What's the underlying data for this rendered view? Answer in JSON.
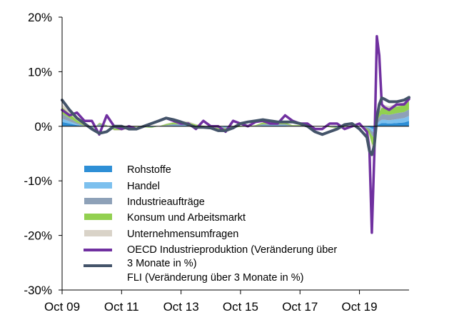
{
  "chart_data": {
    "type": "area",
    "title": "",
    "xlabel": "",
    "ylabel": "",
    "ylim": [
      -30,
      20
    ],
    "yticks": [
      {
        "value": 20,
        "label": "20%"
      },
      {
        "value": 10,
        "label": "10%"
      },
      {
        "value": 0,
        "label": "0%"
      },
      {
        "value": -10,
        "label": "-10%"
      },
      {
        "value": -20,
        "label": "-20%"
      },
      {
        "value": -30,
        "label": "-30%"
      }
    ],
    "xlim": [
      "2009-10",
      "2021-06"
    ],
    "xticks": [
      {
        "value": "2009-10",
        "label": "Oct 09"
      },
      {
        "value": "2011-10",
        "label": "Oct 11"
      },
      {
        "value": "2013-10",
        "label": "Oct 13"
      },
      {
        "value": "2015-10",
        "label": "Oct 15"
      },
      {
        "value": "2017-10",
        "label": "Oct 17"
      },
      {
        "value": "2019-10",
        "label": "Oct 19"
      }
    ],
    "grid": false,
    "legend_position": "bottom-left",
    "x": [
      "2009-10",
      "2010-01",
      "2010-04",
      "2010-07",
      "2010-10",
      "2011-01",
      "2011-04",
      "2011-07",
      "2011-10",
      "2012-01",
      "2012-04",
      "2012-07",
      "2012-10",
      "2013-01",
      "2013-04",
      "2013-07",
      "2013-10",
      "2014-01",
      "2014-04",
      "2014-07",
      "2014-10",
      "2015-01",
      "2015-04",
      "2015-07",
      "2015-10",
      "2016-01",
      "2016-04",
      "2016-07",
      "2016-10",
      "2017-01",
      "2017-04",
      "2017-07",
      "2017-10",
      "2018-01",
      "2018-04",
      "2018-07",
      "2018-10",
      "2019-01",
      "2019-04",
      "2019-07",
      "2019-10",
      "2020-01",
      "2020-02",
      "2020-03",
      "2020-04",
      "2020-05",
      "2020-06",
      "2020-07",
      "2020-08",
      "2020-10",
      "2021-01",
      "2021-04",
      "2021-06"
    ],
    "series": [
      {
        "name": "Rohstoffe",
        "kind": "stacked_area",
        "color": "#2e8fd6",
        "values": [
          0.8,
          0.5,
          0.2,
          0.0,
          -0.1,
          0.1,
          0.0,
          -0.1,
          -0.1,
          0.0,
          0.0,
          0.0,
          -0.1,
          0.0,
          0.0,
          0.1,
          0.1,
          0.1,
          0.0,
          0.0,
          0.0,
          -0.1,
          -0.1,
          0.0,
          0.0,
          0.0,
          0.0,
          0.1,
          0.1,
          0.1,
          0.1,
          0.0,
          0.0,
          0.0,
          0.0,
          0.0,
          0.0,
          -0.1,
          0.0,
          0.0,
          0.0,
          -0.1,
          -0.2,
          -0.4,
          -0.5,
          0.2,
          0.4,
          0.6,
          0.6,
          0.5,
          0.6,
          0.7,
          1.0
        ]
      },
      {
        "name": "Handel",
        "kind": "stacked_area",
        "color": "#7cc0ee",
        "values": [
          0.6,
          0.4,
          0.2,
          0.0,
          -0.1,
          0.1,
          0.0,
          -0.1,
          -0.1,
          0.0,
          0.0,
          0.0,
          0.0,
          0.0,
          0.1,
          0.1,
          0.1,
          0.1,
          0.0,
          0.0,
          0.0,
          0.0,
          -0.1,
          0.0,
          0.0,
          0.0,
          0.0,
          0.1,
          0.1,
          0.1,
          0.1,
          0.0,
          0.0,
          0.0,
          0.0,
          0.0,
          0.0,
          0.0,
          0.0,
          0.0,
          0.0,
          -0.1,
          -0.2,
          -0.5,
          -0.6,
          0.2,
          0.5,
          0.6,
          0.6,
          0.6,
          0.7,
          0.8,
          0.9
        ]
      },
      {
        "name": "Industrieaufträge",
        "kind": "stacked_area",
        "color": "#8ea1b8",
        "values": [
          0.9,
          0.6,
          0.3,
          0.1,
          -0.2,
          0.2,
          0.1,
          -0.2,
          -0.2,
          -0.1,
          0.0,
          -0.1,
          -0.1,
          0.0,
          0.1,
          0.2,
          0.2,
          0.2,
          0.1,
          0.0,
          -0.1,
          -0.2,
          -0.2,
          -0.1,
          0.0,
          0.0,
          0.1,
          0.2,
          0.2,
          0.2,
          0.2,
          0.1,
          0.1,
          0.1,
          0.0,
          0.0,
          -0.1,
          -0.1,
          0.0,
          0.0,
          0.0,
          -0.2,
          -0.4,
          -0.8,
          -1.0,
          0.4,
          0.8,
          1.0,
          1.0,
          1.0,
          1.1,
          1.1,
          1.2
        ]
      },
      {
        "name": "Konsum und Arbeitsmarkt",
        "kind": "stacked_area",
        "color": "#92d050",
        "values": [
          1.2,
          0.8,
          0.4,
          0.1,
          -0.2,
          0.2,
          0.1,
          -0.3,
          -0.3,
          -0.2,
          -0.1,
          -0.1,
          -0.1,
          0.0,
          0.2,
          0.3,
          0.4,
          0.3,
          0.2,
          0.1,
          -0.1,
          -0.2,
          -0.3,
          -0.2,
          -0.1,
          0.0,
          0.1,
          0.3,
          0.3,
          0.3,
          0.3,
          0.1,
          0.1,
          0.1,
          0.0,
          0.0,
          -0.1,
          -0.2,
          -0.1,
          0.0,
          0.0,
          -0.3,
          -0.8,
          -1.5,
          -1.8,
          0.6,
          1.0,
          1.2,
          1.2,
          1.1,
          1.2,
          1.3,
          1.5
        ]
      },
      {
        "name": "Unternehmensumfragen",
        "kind": "stacked_area",
        "color": "#d9d3c8",
        "values": [
          0.6,
          0.4,
          0.2,
          0.0,
          -0.1,
          0.1,
          0.0,
          -0.1,
          -0.1,
          -0.1,
          0.0,
          0.0,
          0.0,
          0.0,
          0.1,
          0.1,
          0.2,
          0.2,
          0.1,
          0.0,
          0.0,
          -0.1,
          -0.1,
          -0.1,
          0.0,
          0.0,
          0.0,
          0.1,
          0.1,
          0.1,
          0.1,
          0.0,
          0.0,
          0.0,
          0.0,
          0.0,
          0.0,
          -0.1,
          0.0,
          0.0,
          0.0,
          -0.1,
          -0.3,
          -0.6,
          -0.8,
          0.2,
          0.4,
          0.5,
          0.5,
          0.5,
          0.5,
          0.5,
          0.5
        ]
      },
      {
        "name": "OECD Industrieproduktion (Veränderung über 3 Monate in %)",
        "kind": "line",
        "color": "#7030a0",
        "values": [
          3.0,
          2.0,
          2.5,
          1.0,
          1.0,
          -1.5,
          2.0,
          0.0,
          -0.5,
          0.0,
          -0.5,
          0.0,
          0.5,
          1.0,
          1.5,
          1.0,
          0.5,
          0.5,
          -0.5,
          1.0,
          0.0,
          0.0,
          -1.0,
          1.0,
          0.5,
          0.0,
          0.8,
          1.0,
          0.5,
          0.5,
          2.0,
          1.0,
          0.5,
          0.5,
          -0.5,
          -0.5,
          0.5,
          0.5,
          -0.5,
          0.0,
          0.5,
          -1.0,
          -4.0,
          -19.5,
          -5.0,
          16.5,
          13.0,
          4.0,
          3.5,
          3.0,
          4.0,
          4.0,
          5.0
        ]
      },
      {
        "name": "FLI (Veränderung über 3 Monate in %)",
        "kind": "line",
        "color": "#44546a",
        "values": [
          4.8,
          3.0,
          1.5,
          0.5,
          -0.5,
          -1.3,
          -1.0,
          0.0,
          0.0,
          -0.5,
          -0.5,
          0.0,
          0.5,
          1.0,
          1.5,
          1.2,
          0.8,
          0.3,
          -0.2,
          -0.2,
          -0.3,
          -0.8,
          -0.8,
          -0.3,
          0.5,
          0.8,
          1.0,
          1.2,
          1.0,
          0.8,
          0.8,
          0.8,
          0.5,
          0.0,
          -1.0,
          -1.5,
          -1.0,
          -0.5,
          0.3,
          0.5,
          -0.5,
          -2.0,
          -4.5,
          -5.2,
          -3.5,
          1.5,
          4.0,
          5.2,
          5.0,
          4.5,
          4.5,
          4.8,
          5.3
        ]
      }
    ],
    "legend": [
      {
        "label": "Rohstoffe",
        "kind": "box",
        "color": "#2e8fd6"
      },
      {
        "label": "Handel",
        "kind": "box",
        "color": "#7cc0ee"
      },
      {
        "label": "Industrieaufträge",
        "kind": "box",
        "color": "#8ea1b8"
      },
      {
        "label": "Konsum und Arbeitsmarkt",
        "kind": "box",
        "color": "#92d050"
      },
      {
        "label": "Unternehmensumfragen",
        "kind": "box",
        "color": "#d9d3c8"
      },
      {
        "label": "OECD Industrieproduktion (Veränderung über",
        "label_line2": "3 Monate in %)",
        "kind": "line",
        "color": "#7030a0"
      },
      {
        "label": "FLI (Veränderung über 3 Monate in %)",
        "kind": "line",
        "color": "#44546a"
      }
    ]
  }
}
